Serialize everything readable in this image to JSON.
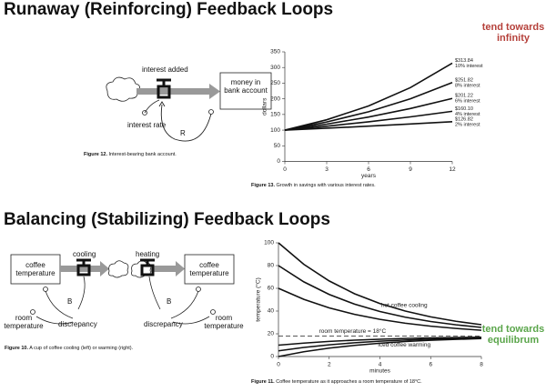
{
  "sections": [
    {
      "title": "Runaway (Reinforcing) Feedback Loops",
      "note": [
        "tend towards",
        "infinity"
      ]
    },
    {
      "title": "Balancing (Stabilizing) Feedback Loops",
      "note": [
        "tend towards",
        "equilibrum"
      ]
    }
  ],
  "diagrams": [
    {
      "labels": [
        "interest added",
        "money in bank account",
        "interest rate",
        "R"
      ],
      "caption": {
        "figure": "Figure 12.",
        "text": "Interest-bearing bank account."
      }
    },
    {
      "labels": [
        "coffee temperature",
        "cooling",
        "B",
        "room temperature",
        "discrepancy",
        "heating",
        "coffee temperature",
        "B",
        "discrepancy",
        "room temperature"
      ],
      "caption": {
        "figure": "Figure 10.",
        "text": "A cup of coffee cooling (left) or warming (right)."
      }
    }
  ],
  "chart_data": [
    {
      "type": "line",
      "x_label": "years",
      "y_label": "dollars",
      "caption": {
        "figure": "Figure 13.",
        "text": "Growth in savings with various interest rates."
      },
      "x": [
        0,
        3,
        6,
        9,
        12
      ],
      "xlim": [
        0,
        12
      ],
      "xticks": [
        0,
        3,
        6,
        9,
        12
      ],
      "ylim": [
        0,
        350
      ],
      "yticks": [
        0,
        50,
        100,
        150,
        200,
        250,
        300,
        350
      ],
      "series": [
        {
          "name": "10% interest",
          "color": "#111111",
          "values": [
            100,
            133.1,
            177.16,
            235.79,
            313.84
          ],
          "value_labels": [
            null,
            null,
            null,
            null,
            "$313.84"
          ]
        },
        {
          "name": "8% interest",
          "color": "#111111",
          "values": [
            100,
            125.97,
            158.69,
            199.9,
            251.82
          ],
          "value_labels": [
            null,
            null,
            null,
            null,
            "$251.82"
          ]
        },
        {
          "name": "6% interest",
          "color": "#111111",
          "values": [
            100,
            119.1,
            141.85,
            168.95,
            201.22
          ],
          "value_labels": [
            null,
            null,
            null,
            null,
            "$201.22"
          ]
        },
        {
          "name": "4% interest",
          "color": "#111111",
          "values": [
            100,
            112.49,
            126.53,
            142.33,
            160.1
          ],
          "value_labels": [
            null,
            null,
            null,
            null,
            "$160.10"
          ]
        },
        {
          "name": "2% interest",
          "color": "#111111",
          "values": [
            100,
            106.12,
            112.62,
            119.51,
            126.82
          ],
          "value_labels": [
            null,
            null,
            null,
            null,
            "$126.82"
          ]
        }
      ]
    },
    {
      "type": "line",
      "x_label": "minutes",
      "y_label": "temperature (°C)",
      "caption": {
        "figure": "Figure 11.",
        "text": "Coffee temperature as it approaches a room temperature of 18°C."
      },
      "x": [
        0,
        1,
        2,
        3,
        4,
        5,
        6,
        7,
        8
      ],
      "xlim": [
        0,
        8
      ],
      "xticks": [
        0,
        2,
        4,
        6,
        8
      ],
      "ylim": [
        0,
        100
      ],
      "yticks": [
        0,
        20,
        40,
        60,
        80,
        100
      ],
      "reference_line": {
        "value": 18,
        "label": "room temperature = 18°C"
      },
      "annotations": [
        "hot coffee cooling",
        "iced coffee warming"
      ],
      "series": [
        {
          "color": "#111111",
          "values": [
            100,
            81.1,
            66.5,
            55.2,
            46.6,
            40.0,
            34.9,
            31.0,
            28.0
          ]
        },
        {
          "color": "#111111",
          "values": [
            80,
            65.7,
            54.6,
            46.1,
            39.6,
            34.6,
            30.8,
            27.9,
            25.6
          ]
        },
        {
          "color": "#111111",
          "values": [
            60,
            50.3,
            42.8,
            37.1,
            32.7,
            29.3,
            26.7,
            24.7,
            23.1
          ]
        },
        {
          "color": "#111111",
          "values": [
            0,
            4.2,
            7.4,
            9.8,
            11.7,
            13.2,
            14.3,
            15.1,
            15.8
          ]
        },
        {
          "color": "#111111",
          "values": [
            5,
            8.0,
            10.3,
            12.1,
            13.5,
            14.5,
            15.3,
            15.9,
            16.4
          ]
        },
        {
          "color": "#111111",
          "values": [
            10,
            11.8,
            13.3,
            14.4,
            15.2,
            15.9,
            16.4,
            16.7,
            17.0
          ]
        }
      ]
    }
  ]
}
